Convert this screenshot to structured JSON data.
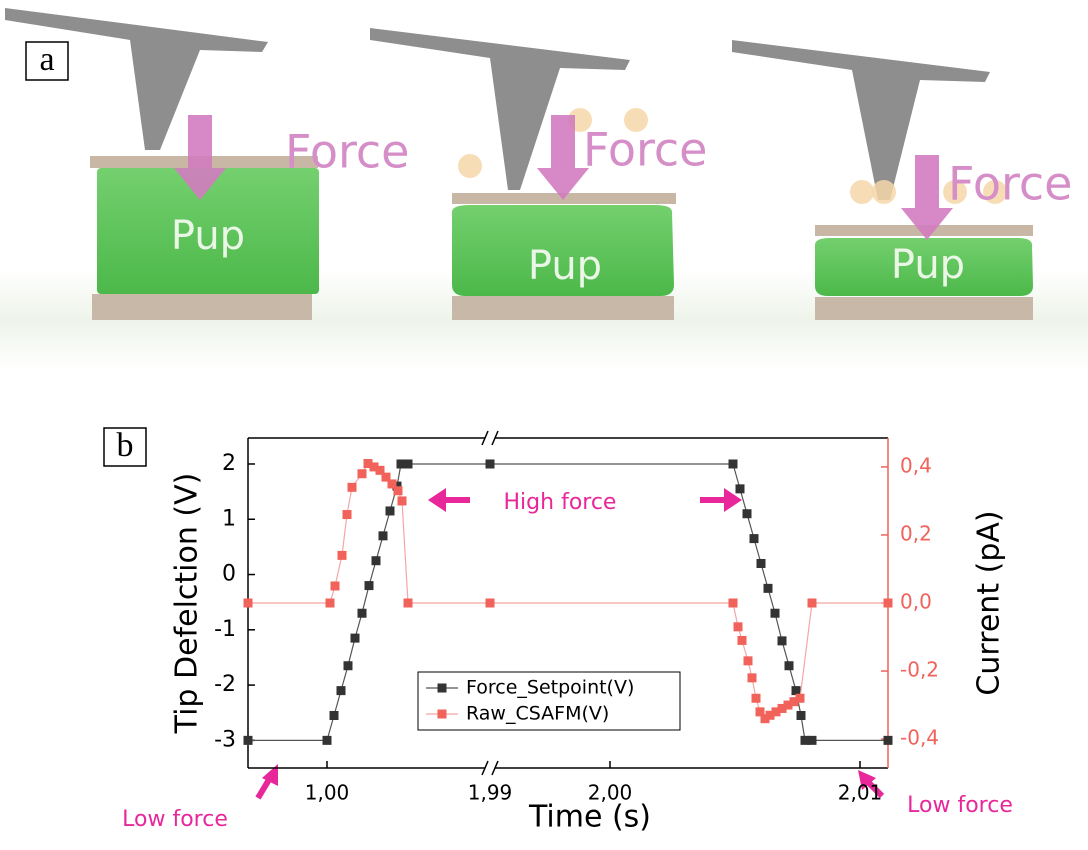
{
  "panel_a": {
    "label": "a",
    "stages": [
      {
        "force": "Force",
        "block": "Pup"
      },
      {
        "force": "Force",
        "block": "Pup"
      },
      {
        "force": "Force",
        "block": "Pup"
      }
    ]
  },
  "chart_data": {
    "type": "line",
    "panel_label": "b",
    "xlabel": "Time (s)",
    "ylabel": "Tip Defelction (V)",
    "y2label": "Current (pA)",
    "x_segments": [
      {
        "xlim": [
          0.99684,
          1.00652
        ],
        "xticks": [
          {
            "value": 1.0,
            "label": "1,00"
          }
        ]
      },
      {
        "xlim": [
          1.9952,
          2.01112
        ],
        "xticks": [
          {
            "value": 2.0,
            "label": "2,00"
          },
          {
            "value": 2.01,
            "label": "2,01"
          }
        ]
      }
    ],
    "break_label": "1,99",
    "ylim": [
      -3.5,
      2.47
    ],
    "yticks": [
      -3,
      -2,
      -1,
      0,
      1,
      2
    ],
    "y2lim": [
      -0.485,
      0.485
    ],
    "y2ticks": [
      {
        "value": -0.4,
        "label": "-0,4"
      },
      {
        "value": -0.2,
        "label": "-0,2"
      },
      {
        "value": 0,
        "label": "0,0"
      },
      {
        "value": 0.2,
        "label": "0,2"
      },
      {
        "value": 0.4,
        "label": "0,4"
      }
    ],
    "legend": "lower center",
    "series": [
      {
        "name": "Force_Setpoint(V)",
        "color": "#333333",
        "line_color": "#555555",
        "x": [
          0.99684,
          1.0,
          1.00028,
          1.00056,
          1.00084,
          1.00112,
          1.0014,
          1.00168,
          1.00196,
          1.00224,
          1.00252,
          1.0028,
          1.00296,
          1.00324,
          1.00652,
          1.9952,
          2.00492,
          2.0052,
          2.00548,
          2.00576,
          2.00604,
          2.00632,
          2.0066,
          2.00688,
          2.00716,
          2.00744,
          2.00764,
          2.0078,
          2.00808,
          2.01112
        ],
        "values": [
          -3,
          -3,
          -2.55,
          -2.1,
          -1.65,
          -1.15,
          -0.7,
          -0.2,
          0.25,
          0.7,
          1.15,
          1.6,
          2,
          2,
          2,
          2,
          2,
          1.55,
          1.1,
          0.65,
          0.2,
          -0.25,
          -0.7,
          -1.2,
          -1.65,
          -2.1,
          -2.55,
          -3,
          -3,
          -3
        ]
      },
      {
        "name": "Raw_CSAFM(V)",
        "color": "#f0625a",
        "line_color": "#f5a5a5",
        "axis": "y2",
        "x": [
          0.99684,
          1.00012,
          1.00032,
          1.0006,
          1.0008,
          1.001,
          1.0014,
          1.00164,
          1.00188,
          1.00212,
          1.00236,
          1.0026,
          1.00284,
          1.003,
          1.00324,
          1.00652,
          1.9952,
          2.00492,
          2.00512,
          2.00528,
          2.00552,
          2.00568,
          2.00584,
          2.006,
          2.0062,
          2.0064,
          2.00664,
          2.00688,
          2.00712,
          2.00736,
          2.0076,
          2.00808,
          2.01112
        ],
        "values": [
          0,
          0,
          0.05,
          0.14,
          0.26,
          0.34,
          0.38,
          0.41,
          0.4,
          0.39,
          0.37,
          0.35,
          0.33,
          0.3,
          0,
          0,
          0,
          0,
          -0.07,
          -0.11,
          -0.17,
          -0.22,
          -0.28,
          -0.32,
          -0.34,
          -0.33,
          -0.32,
          -0.31,
          -0.3,
          -0.29,
          -0.28,
          0,
          0
        ]
      }
    ],
    "annotations": {
      "high": "High force",
      "low_left": "Low force",
      "low_right": "Low force"
    }
  }
}
